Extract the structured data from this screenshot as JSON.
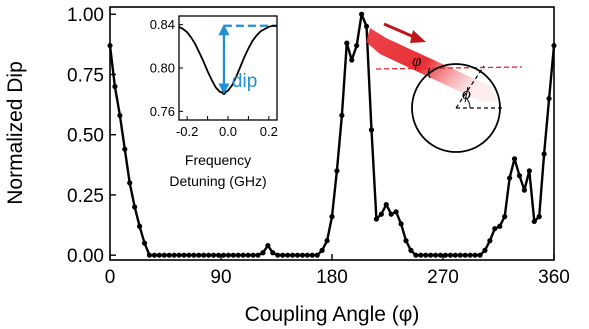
{
  "chart_data": [
    {
      "type": "line",
      "xlabel": "Coupling Angle (φ)",
      "ylabel": "Normalized Dip",
      "xlim": [
        0,
        360
      ],
      "ylim": [
        -0.02,
        1.03
      ],
      "xticks": [
        0,
        90,
        180,
        270,
        360
      ],
      "xtick_labels": [
        "0",
        "90",
        "180",
        "270",
        "360"
      ],
      "yticks": [
        0.0,
        0.25,
        0.5,
        0.75,
        1.0
      ],
      "ytick_labels": [
        "0.00",
        "0.25",
        "0.50",
        "0.75",
        "1.00"
      ],
      "grid": false,
      "color": "#000000",
      "series": [
        {
          "x": [
            0,
            4,
            8,
            12,
            16,
            20,
            24,
            28,
            32,
            36,
            40,
            44,
            48,
            52,
            56,
            60,
            64,
            68,
            72,
            76,
            80,
            84,
            88,
            92,
            96,
            100,
            104,
            108,
            112,
            116,
            120,
            124,
            128,
            132,
            136,
            140,
            144,
            148,
            152,
            156,
            160,
            164,
            168,
            172,
            176,
            180,
            184,
            188,
            192,
            196,
            200,
            204,
            208,
            212,
            216,
            220,
            224,
            228,
            232,
            236,
            240,
            244,
            248,
            252,
            256,
            260,
            264,
            268,
            272,
            276,
            280,
            284,
            288,
            292,
            296,
            300,
            304,
            308,
            312,
            316,
            320,
            324,
            328,
            332,
            336,
            340,
            344,
            348,
            352,
            356,
            360
          ],
          "y": [
            0.87,
            0.7,
            0.58,
            0.44,
            0.3,
            0.2,
            0.12,
            0.05,
            0.0,
            0.0,
            0.0,
            0.0,
            0.0,
            0.0,
            0.0,
            0.0,
            0.0,
            0.0,
            0.0,
            0.0,
            0.0,
            0.0,
            0.0,
            0.0,
            0.0,
            0.0,
            0.0,
            0.0,
            0.0,
            0.0,
            0.0,
            0.01,
            0.04,
            0.01,
            0.0,
            0.0,
            0.0,
            0.0,
            0.0,
            0.0,
            0.0,
            0.0,
            0.0,
            0.02,
            0.06,
            0.16,
            0.35,
            0.58,
            0.88,
            0.81,
            0.87,
            1.0,
            0.95,
            0.52,
            0.15,
            0.17,
            0.21,
            0.17,
            0.18,
            0.13,
            0.06,
            0.02,
            0.0,
            0.0,
            0.0,
            0.0,
            0.0,
            0.0,
            0.0,
            0.0,
            0.0,
            0.0,
            0.0,
            0.0,
            0.0,
            0.0,
            0.02,
            0.06,
            0.11,
            0.12,
            0.16,
            0.32,
            0.4,
            0.33,
            0.27,
            0.35,
            0.14,
            0.16,
            0.42,
            0.65,
            0.87
          ]
        }
      ]
    },
    {
      "type": "line",
      "xlabel": "Frequency Detuning (GHz)",
      "xlabel_lines": [
        "Frequency",
        "Detuning (GHz)"
      ],
      "xlim": [
        -0.24,
        0.24
      ],
      "ylim": [
        0.752,
        0.848
      ],
      "xticks": [
        -0.2,
        -0.1,
        0.0,
        0.1,
        0.2
      ],
      "xtick_labels": [
        "-0.2",
        "0.0",
        "0.2"
      ],
      "xtick_label_values": [
        -0.2,
        0.0,
        0.2
      ],
      "yticks": [
        0.76,
        0.8,
        0.84
      ],
      "ytick_labels": [
        "0.76",
        "0.80",
        "0.84"
      ],
      "baseline": 0.839,
      "annotation": "dip",
      "annotation_color": "#1f8fd6",
      "series": [
        {
          "x": [
            -0.24,
            -0.22,
            -0.2,
            -0.18,
            -0.16,
            -0.14,
            -0.12,
            -0.1,
            -0.08,
            -0.06,
            -0.04,
            -0.02,
            0.0,
            0.02,
            0.04,
            0.06,
            0.08,
            0.1,
            0.12,
            0.14,
            0.16,
            0.18,
            0.2,
            0.22,
            0.24
          ],
          "y": [
            0.838,
            0.836,
            0.833,
            0.828,
            0.822,
            0.814,
            0.806,
            0.797,
            0.789,
            0.782,
            0.778,
            0.777,
            0.779,
            0.784,
            0.792,
            0.801,
            0.81,
            0.818,
            0.825,
            0.83,
            0.834,
            0.836,
            0.838,
            0.839,
            0.839
          ]
        }
      ]
    }
  ],
  "schematic": {
    "symbols": [
      "φ",
      "ϕ"
    ],
    "beam_color": "#e8242b",
    "arrow_color": "#c0161c"
  }
}
